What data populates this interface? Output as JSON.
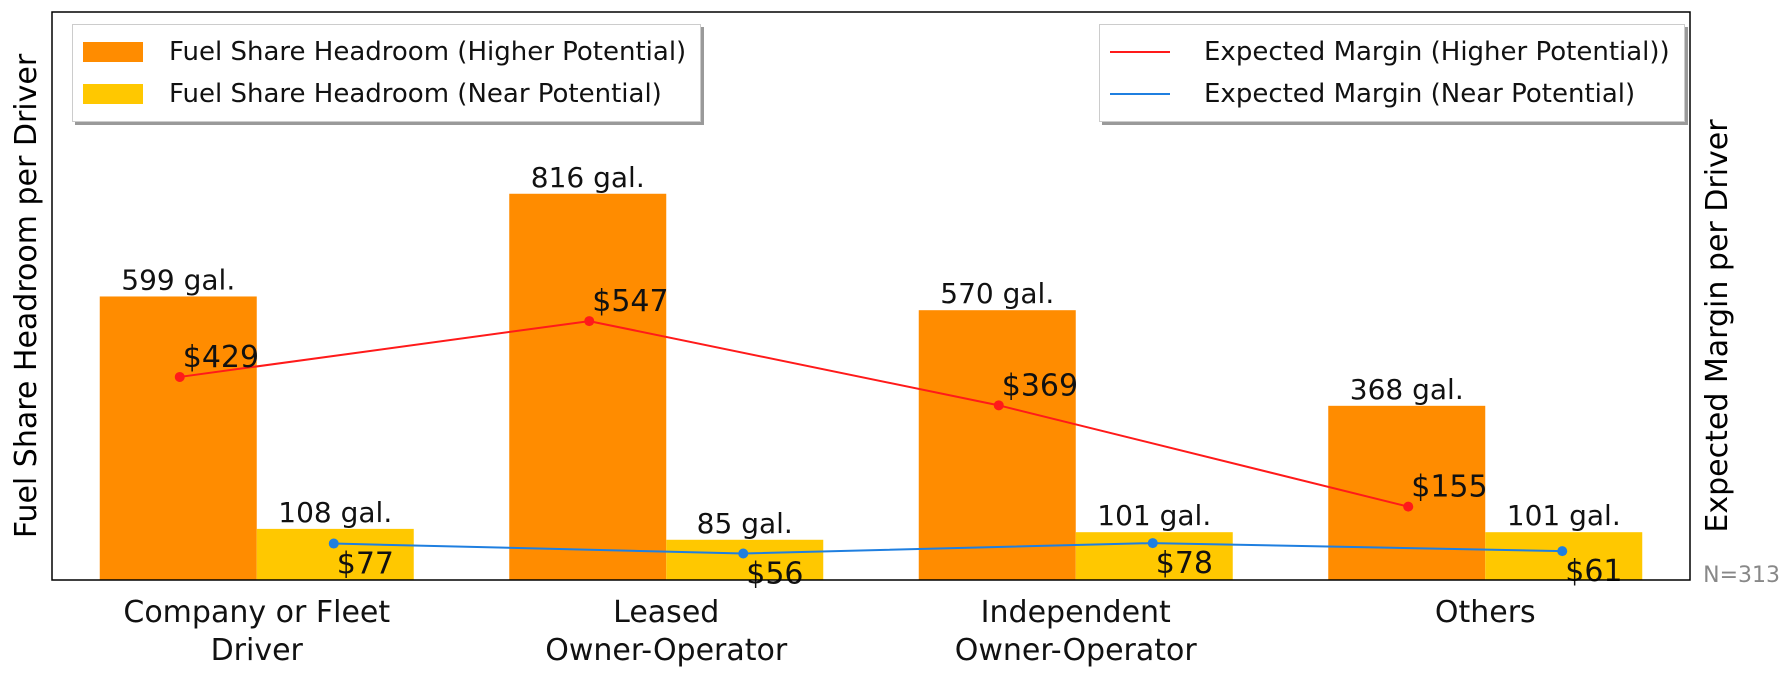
{
  "chart_data": {
    "type": "bar",
    "categories": [
      "Company or Fleet\nDriver",
      "Leased\nOwner-Operator",
      "Independent\nOwner-Operator",
      "Others"
    ],
    "series": [
      {
        "name": "Fuel Share Headroom (Higher Potential)",
        "type": "bar",
        "axis": "left",
        "color": "#ff8c00",
        "values": [
          599,
          816,
          570,
          368
        ],
        "labels": [
          "599 gal.",
          "816 gal.",
          "570 gal.",
          "368 gal."
        ]
      },
      {
        "name": "Fuel Share Headroom (Near Potential)",
        "type": "bar",
        "axis": "left",
        "color": "#ffc800",
        "values": [
          108,
          85,
          101,
          101
        ],
        "labels": [
          "108 gal.",
          "85 gal.",
          "101 gal.",
          "101 gal."
        ]
      },
      {
        "name": "Expected Margin (Higher Potential))",
        "type": "line",
        "axis": "right",
        "color": "#ff1a1a",
        "values": [
          429,
          547,
          369,
          155
        ],
        "labels": [
          "$429",
          "$547",
          "$369",
          "$155"
        ]
      },
      {
        "name": "Expected Margin (Near Potential)",
        "type": "line",
        "axis": "right",
        "color": "#1f7fe0",
        "values": [
          77,
          56,
          78,
          61
        ],
        "labels": [
          "$77",
          "$56",
          "$78",
          "$61"
        ]
      }
    ],
    "ylabel": "Fuel Share Headroom per Driver",
    "y2label": "Expected Margin per Driver",
    "ylim": [
      0,
      1200
    ],
    "y2lim": [
      0,
      1200
    ],
    "y_ticks_visible": false,
    "grid": false,
    "legend_left": "top-left",
    "legend_right": "top-right",
    "annotation": "N=313"
  }
}
